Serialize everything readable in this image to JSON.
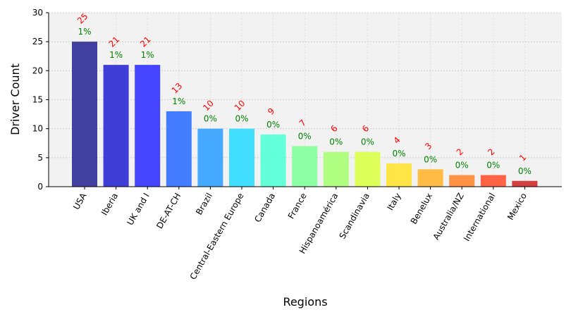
{
  "chart_data": {
    "type": "bar",
    "title": "",
    "xlabel": "Regions",
    "ylabel": "Driver Count",
    "ylim": [
      0,
      30
    ],
    "yticks": [
      0,
      5,
      10,
      15,
      20,
      25,
      30
    ],
    "grid": true,
    "legend": "none",
    "categories": [
      "USA",
      "Iberia",
      "UK and I",
      "DE-AT-CH",
      "Brazil",
      "Central-Eastern Europe",
      "Canada",
      "France",
      "Hispanoamérica",
      "Scandinavia",
      "Italy",
      "Benelux",
      "Australia/NZ",
      "International",
      "Mexico"
    ],
    "values": [
      25,
      21,
      21,
      13,
      10,
      10,
      9,
      7,
      6,
      6,
      4,
      3,
      2,
      2,
      1
    ],
    "percent_labels": [
      "1%",
      "1%",
      "1%",
      "1%",
      "0%",
      "0%",
      "0%",
      "0%",
      "0%",
      "0%",
      "0%",
      "0%",
      "0%",
      "0%",
      "0%"
    ],
    "colors": [
      "#38369a",
      "#3535d6",
      "#3b3bff",
      "#3a76ff",
      "#3ba5ff",
      "#38dcff",
      "#5affd6",
      "#86ffa0",
      "#adff7b",
      "#dcff50",
      "#ffe43c",
      "#ffb73a",
      "#ff8c3a",
      "#ff5a3a",
      "#d23434"
    ],
    "value_label_color": "#ff0000",
    "percent_label_color": "#008000",
    "plot_background": "#f2f2f2"
  }
}
